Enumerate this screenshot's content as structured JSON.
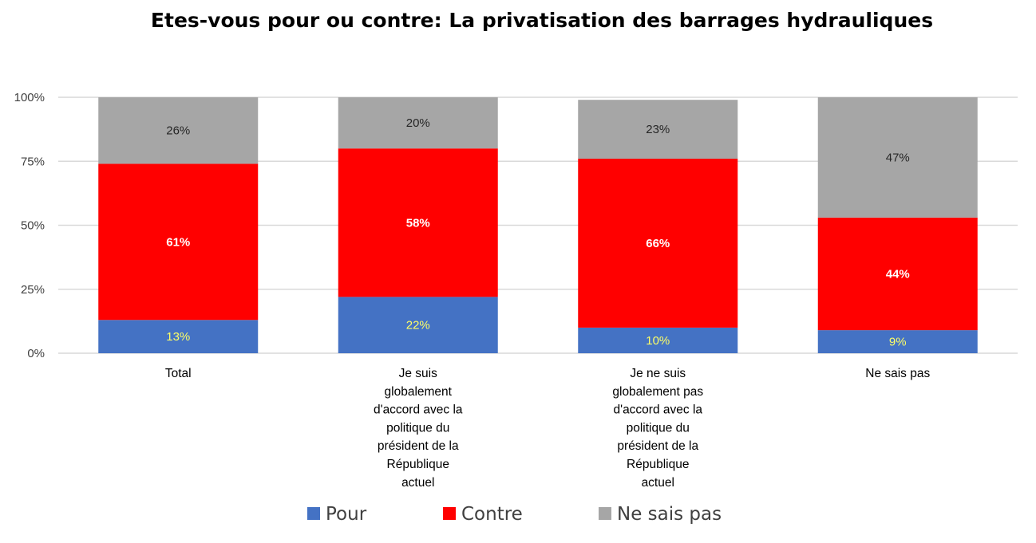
{
  "chart_data": {
    "type": "bar",
    "stacked": true,
    "title": "Etes-vous pour ou contre: La privatisation des barrages hydrauliques",
    "xlabel": "",
    "ylabel": "",
    "ylim": [
      0,
      100
    ],
    "yticks": [
      "0%",
      "25%",
      "50%",
      "75%",
      "100%"
    ],
    "grid": true,
    "legend_position": "bottom",
    "categories": [
      [
        "Total"
      ],
      [
        "Je suis",
        "globalement",
        "d'accord avec la",
        "politique du",
        "président de la",
        "République",
        "actuel"
      ],
      [
        "Je ne suis",
        "globalement pas",
        "d'accord avec la",
        "politique du",
        "président de la",
        "République",
        "actuel"
      ],
      [
        "Ne sais pas"
      ]
    ],
    "series": [
      {
        "name": "Pour",
        "color": "#4472C4",
        "label_color": "#FFFF66",
        "label_bold": false,
        "values": [
          13,
          22,
          10,
          9
        ],
        "labels": [
          "13%",
          "22%",
          "10%",
          "9%"
        ]
      },
      {
        "name": "Contre",
        "color": "#FF0000",
        "label_color": "#FFFFFF",
        "label_bold": true,
        "values": [
          61,
          58,
          66,
          44
        ],
        "labels": [
          "61%",
          "58%",
          "66%",
          "44%"
        ]
      },
      {
        "name": "Ne sais pas",
        "color": "#A6A6A6",
        "label_color": "#262626",
        "label_bold": false,
        "values": [
          26,
          20,
          23,
          47
        ],
        "labels": [
          "26%",
          "20%",
          "23%",
          "47%"
        ]
      }
    ]
  }
}
